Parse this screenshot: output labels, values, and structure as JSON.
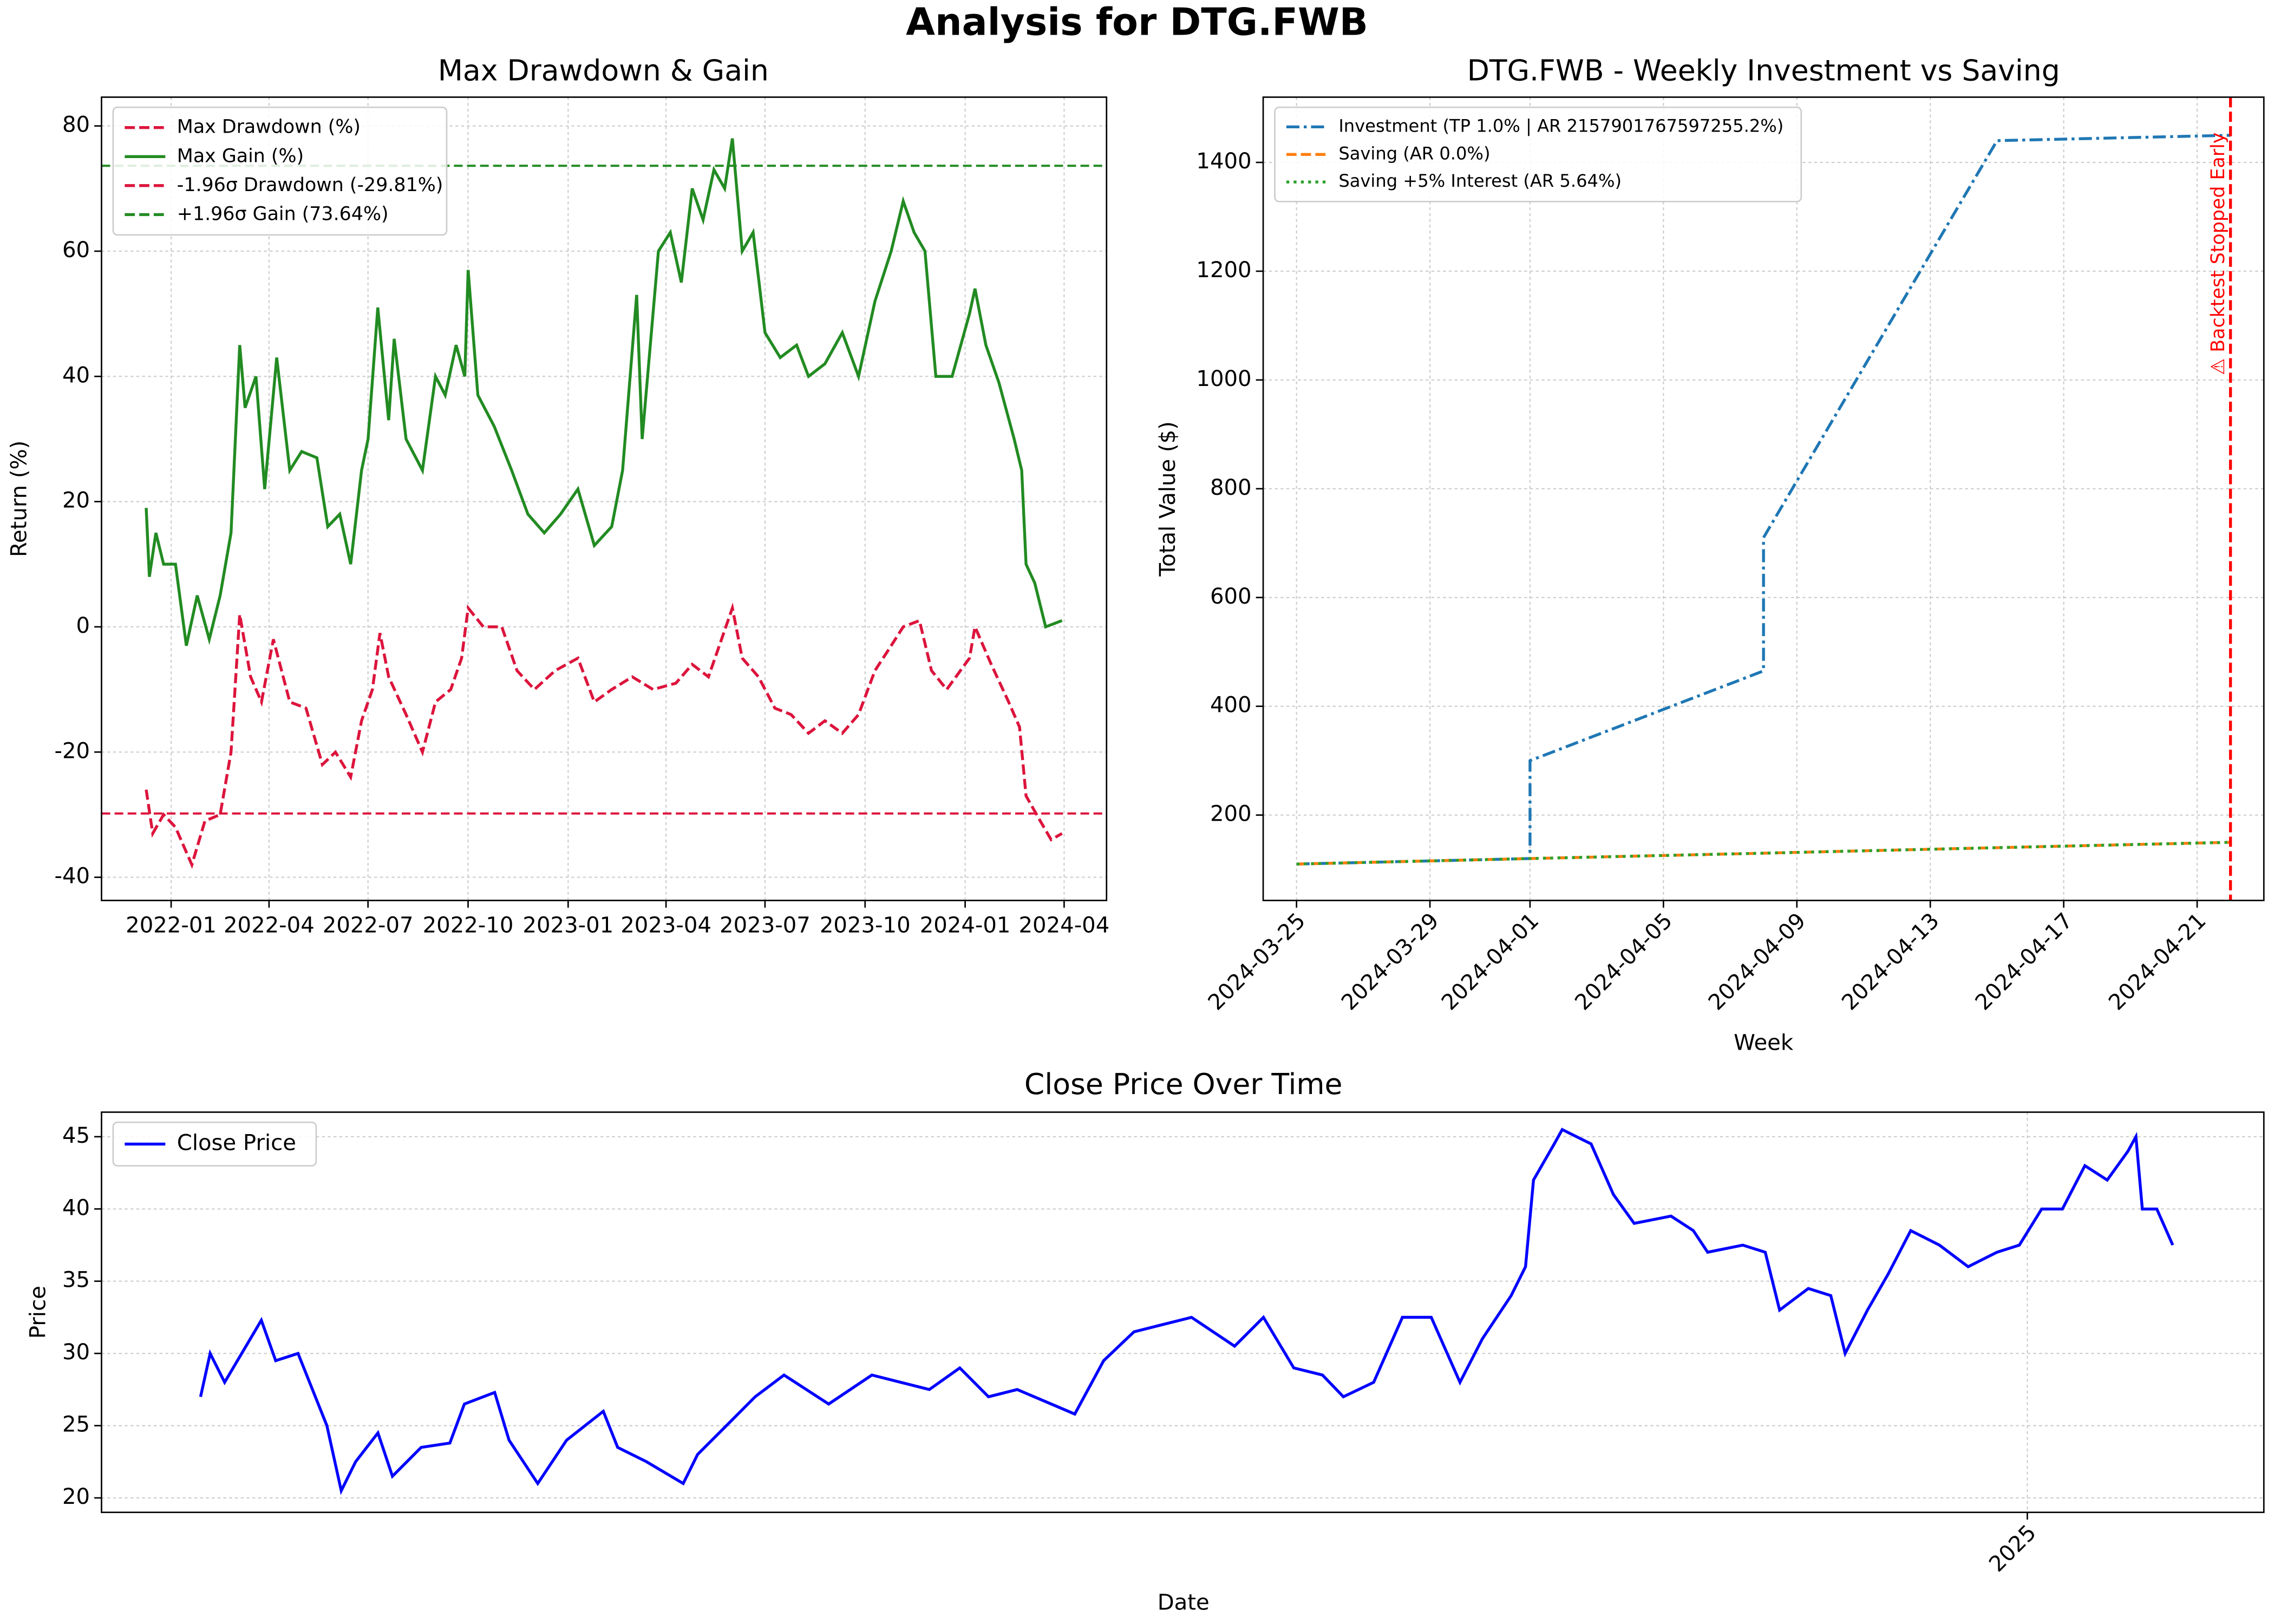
{
  "title": "Analysis for DTG.FWB",
  "chart_data": [
    {
      "type": "line",
      "title": "Max Drawdown & Gain",
      "ylabel": "Return (%)",
      "grid": true,
      "legend": "upper left",
      "xlim": [
        "2021-10-29",
        "2024-05-10"
      ],
      "ylim": [
        -43.7,
        84.6
      ],
      "xticks": [
        {
          "value": "2022-01-01",
          "label": "2022-01"
        },
        {
          "value": "2022-04-01",
          "label": "2022-04"
        },
        {
          "value": "2022-07-01",
          "label": "2022-07"
        },
        {
          "value": "2022-10-01",
          "label": "2022-10"
        },
        {
          "value": "2023-01-01",
          "label": "2023-01"
        },
        {
          "value": "2023-04-01",
          "label": "2023-04"
        },
        {
          "value": "2023-07-01",
          "label": "2023-07"
        },
        {
          "value": "2023-10-01",
          "label": "2023-10"
        },
        {
          "value": "2024-01-01",
          "label": "2024-01"
        },
        {
          "value": "2024-04-01",
          "label": "2024-04"
        }
      ],
      "yticks": [
        -40,
        -20,
        0,
        20,
        40,
        60,
        80
      ],
      "series": [
        {
          "name": "Max Drawdown (%)",
          "color": "#dc143c",
          "dash": "dashed",
          "x": [
            "2021-12-09",
            "2021-12-15",
            "2021-12-25",
            "2022-01-05",
            "2022-01-20",
            "2022-02-01",
            "2022-02-15",
            "2022-02-25",
            "2022-03-05",
            "2022-03-15",
            "2022-03-25",
            "2022-04-05",
            "2022-04-20",
            "2022-05-05",
            "2022-05-20",
            "2022-06-01",
            "2022-06-15",
            "2022-06-25",
            "2022-07-05",
            "2022-07-12",
            "2022-07-20",
            "2022-08-05",
            "2022-08-20",
            "2022-09-01",
            "2022-09-15",
            "2022-09-25",
            "2022-10-01",
            "2022-10-15",
            "2022-11-01",
            "2022-11-15",
            "2022-12-01",
            "2022-12-20",
            "2023-01-10",
            "2023-01-25",
            "2023-02-10",
            "2023-03-01",
            "2023-03-20",
            "2023-04-10",
            "2023-04-25",
            "2023-05-10",
            "2023-05-20",
            "2023-06-01",
            "2023-06-10",
            "2023-06-25",
            "2023-07-10",
            "2023-07-25",
            "2023-08-10",
            "2023-08-25",
            "2023-09-10",
            "2023-09-25",
            "2023-10-10",
            "2023-10-25",
            "2023-11-05",
            "2023-11-20",
            "2023-12-01",
            "2023-12-15",
            "2024-01-05",
            "2024-01-10",
            "2024-01-25",
            "2024-02-10",
            "2024-02-20",
            "2024-02-26",
            "2024-03-10",
            "2024-03-20",
            "2024-03-30"
          ],
          "values": [
            -26,
            -33,
            -30,
            -32,
            -38,
            -31,
            -30,
            -20,
            2,
            -8,
            -12,
            -2,
            -12,
            -13,
            -22,
            -20,
            -24,
            -15,
            -10,
            -1,
            -8,
            -14,
            -20,
            -12,
            -10,
            -5,
            3,
            0,
            0,
            -7,
            -10,
            -7,
            -5,
            -12,
            -10,
            -8,
            -10,
            -9,
            -6,
            -8,
            -3,
            3,
            -5,
            -8,
            -13,
            -14,
            -17,
            -15,
            -17,
            -14,
            -7,
            -3,
            0,
            1,
            -7,
            -10,
            -5,
            0,
            -6,
            -12,
            -16,
            -27,
            -31,
            -34,
            -33
          ]
        },
        {
          "name": "Max Gain (%)",
          "color": "#228b22",
          "dash": "solid",
          "x": [
            "2021-12-09",
            "2021-12-12",
            "2021-12-18",
            "2021-12-25",
            "2022-01-05",
            "2022-01-15",
            "2022-01-25",
            "2022-02-05",
            "2022-02-15",
            "2022-02-25",
            "2022-03-05",
            "2022-03-10",
            "2022-03-20",
            "2022-03-28",
            "2022-04-08",
            "2022-04-20",
            "2022-05-01",
            "2022-05-15",
            "2022-05-25",
            "2022-06-05",
            "2022-06-15",
            "2022-06-25",
            "2022-07-01",
            "2022-07-10",
            "2022-07-20",
            "2022-07-25",
            "2022-08-05",
            "2022-08-20",
            "2022-09-01",
            "2022-09-10",
            "2022-09-20",
            "2022-09-28",
            "2022-10-01",
            "2022-10-10",
            "2022-10-25",
            "2022-11-10",
            "2022-11-25",
            "2022-12-10",
            "2022-12-25",
            "2023-01-10",
            "2023-01-25",
            "2023-02-10",
            "2023-02-20",
            "2023-03-05",
            "2023-03-10",
            "2023-03-25",
            "2023-04-05",
            "2023-04-15",
            "2023-04-25",
            "2023-05-05",
            "2023-05-15",
            "2023-05-25",
            "2023-06-01",
            "2023-06-10",
            "2023-06-20",
            "2023-07-01",
            "2023-07-15",
            "2023-07-30",
            "2023-08-10",
            "2023-08-25",
            "2023-09-10",
            "2023-09-25",
            "2023-10-10",
            "2023-10-25",
            "2023-11-05",
            "2023-11-15",
            "2023-11-25",
            "2023-12-05",
            "2023-12-20",
            "2024-01-05",
            "2024-01-10",
            "2024-01-20",
            "2024-02-01",
            "2024-02-15",
            "2024-02-22",
            "2024-02-26",
            "2024-03-05",
            "2024-03-15",
            "2024-03-30"
          ],
          "values": [
            19,
            8,
            15,
            10,
            10,
            -3,
            5,
            -2,
            5,
            15,
            45,
            35,
            40,
            22,
            43,
            25,
            28,
            27,
            16,
            18,
            10,
            25,
            30,
            51,
            33,
            46,
            30,
            25,
            40,
            37,
            45,
            40,
            57,
            37,
            32,
            25,
            18,
            15,
            18,
            22,
            13,
            16,
            25,
            53,
            30,
            60,
            63,
            55,
            70,
            65,
            73,
            70,
            78,
            60,
            63,
            47,
            43,
            45,
            40,
            42,
            47,
            40,
            52,
            60,
            68,
            63,
            60,
            40,
            40,
            50,
            54,
            45,
            39,
            30,
            25,
            10,
            7,
            0,
            1
          ]
        }
      ],
      "hlines": [
        {
          "name": "-1.96σ Drawdown (-29.81%)",
          "color": "#dc143c",
          "value": -29.81
        },
        {
          "name": "+1.96σ Gain (73.64%)",
          "color": "#228b22",
          "value": 73.64
        }
      ]
    },
    {
      "type": "line",
      "title": "DTG.FWB - Weekly Investment vs Saving",
      "xlabel": "Week",
      "ylabel": "Total Value ($)",
      "grid": true,
      "legend": "upper left",
      "xtick_rotation": 45,
      "xlim": [
        "2024-03-24",
        "2024-04-23"
      ],
      "ylim": [
        43,
        1520
      ],
      "xticks": [
        "2024-03-25",
        "2024-03-29",
        "2024-04-01",
        "2024-04-05",
        "2024-04-09",
        "2024-04-13",
        "2024-04-17",
        "2024-04-21"
      ],
      "yticks": [
        200,
        400,
        600,
        800,
        1000,
        1200,
        1400
      ],
      "series": [
        {
          "name": "Investment (TP 1.0% | AR 2157901767597255.2%)",
          "color": "#1f77b4",
          "dash": "dashdot",
          "x": [
            "2024-03-25",
            "2024-04-01",
            "2024-04-01",
            "2024-04-08",
            "2024-04-08",
            "2024-04-15",
            "2024-04-22"
          ],
          "values": [
            110,
            120,
            300,
            465,
            710,
            1440,
            1450
          ]
        },
        {
          "name": "Saving (AR 0.0%)",
          "color": "#ff7f0e",
          "dash": "dashed",
          "x": [
            "2024-03-25",
            "2024-04-01",
            "2024-04-08",
            "2024-04-15",
            "2024-04-22"
          ],
          "values": [
            110,
            120,
            130,
            140,
            150
          ]
        },
        {
          "name": "Saving +5% Interest (AR 5.64%)",
          "color": "#2ca02c",
          "dash": "dotted",
          "x": [
            "2024-03-25",
            "2024-04-01",
            "2024-04-08",
            "2024-04-15",
            "2024-04-22"
          ],
          "values": [
            110,
            120,
            130,
            140,
            150
          ]
        }
      ],
      "vline": {
        "x": "2024-04-22",
        "color": "red",
        "label": "⚠ Backtest Stopped Early"
      }
    },
    {
      "type": "line",
      "title": "Close Price Over Time",
      "xlabel": "Date",
      "ylabel": "Price",
      "grid": true,
      "legend": "upper left",
      "xtick_rotation": 45,
      "xlim": [
        "2021-09-14",
        "2025-05-29"
      ],
      "ylim": [
        19.0,
        46.7
      ],
      "xticks": [
        {
          "value": "2025-01-01",
          "label": "2025"
        }
      ],
      "yticks": [
        20,
        25,
        30,
        35,
        40,
        45
      ],
      "series": [
        {
          "name": "Close Price",
          "color": "#0000ff",
          "dash": "solid",
          "x": [
            "2021-11-15",
            "2021-11-21",
            "2021-11-30",
            "2021-12-23",
            "2022-01-01",
            "2022-01-15",
            "2022-02-02",
            "2022-02-11",
            "2022-02-20",
            "2022-03-06",
            "2022-03-15",
            "2022-04-02",
            "2022-04-20",
            "2022-04-29",
            "2022-05-18",
            "2022-05-27",
            "2022-06-14",
            "2022-07-02",
            "2022-07-25",
            "2022-08-03",
            "2022-08-21",
            "2022-09-13",
            "2022-09-22",
            "2022-10-10",
            "2022-10-28",
            "2022-11-15",
            "2022-12-13",
            "2023-01-09",
            "2023-02-14",
            "2023-03-05",
            "2023-03-23",
            "2023-04-10",
            "2023-05-16",
            "2023-06-03",
            "2023-06-22",
            "2023-07-10",
            "2023-07-28",
            "2023-08-24",
            "2023-09-11",
            "2023-09-30",
            "2023-10-18",
            "2023-10-31",
            "2023-11-19",
            "2023-12-07",
            "2023-12-25",
            "2024-01-12",
            "2024-01-26",
            "2024-02-13",
            "2024-02-22",
            "2024-02-27",
            "2024-03-11",
            "2024-03-16",
            "2024-04-03",
            "2024-04-17",
            "2024-04-30",
            "2024-05-23",
            "2024-06-06",
            "2024-06-15",
            "2024-07-07",
            "2024-07-21",
            "2024-07-30",
            "2024-08-17",
            "2024-08-31",
            "2024-09-09",
            "2024-09-23",
            "2024-10-06",
            "2024-10-20",
            "2024-11-07",
            "2024-11-25",
            "2024-12-13",
            "2024-12-27",
            "2025-01-10",
            "2025-01-23",
            "2025-02-06",
            "2025-02-20",
            "2025-03-05",
            "2025-03-10",
            "2025-03-14",
            "2025-03-23",
            "2025-04-02"
          ],
          "values": [
            27,
            30,
            28,
            32.3,
            29.5,
            30,
            25,
            20.5,
            22.5,
            24.5,
            21.5,
            23.5,
            23.8,
            26.5,
            27.3,
            24,
            21,
            24,
            26,
            23.5,
            22.5,
            21,
            23,
            25,
            27,
            28.5,
            26.5,
            28.5,
            27.5,
            29,
            27,
            27.5,
            25.8,
            29.5,
            31.5,
            32,
            32.5,
            30.5,
            32.5,
            29,
            28.5,
            27,
            28,
            32.5,
            32.5,
            28,
            31,
            34,
            36,
            42,
            44.5,
            45.5,
            44.5,
            41,
            39,
            39.5,
            38.5,
            37,
            37.5,
            37,
            33,
            34.5,
            34,
            30,
            33,
            35.5,
            38.5,
            37.5,
            36,
            37,
            37.5,
            40,
            40,
            43,
            42,
            44,
            45,
            40,
            40,
            37.5
          ]
        }
      ]
    }
  ]
}
